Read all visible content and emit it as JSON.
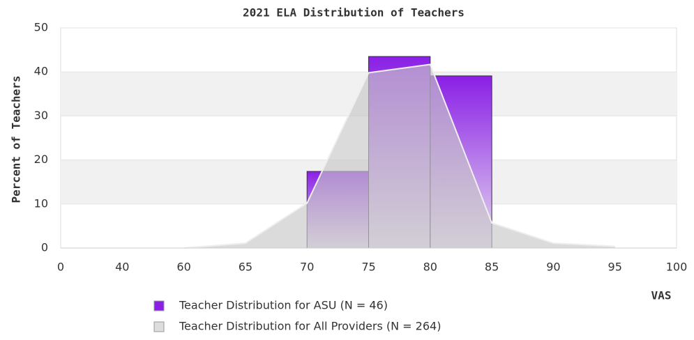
{
  "chart_data": {
    "type": "histogram",
    "title": "2021 ELA Distribution of Teachers",
    "y_label": "Percent of Teachers",
    "x_label": "VAS",
    "categories": [
      "0",
      "40",
      "60",
      "65",
      "70",
      "75",
      "80",
      "85",
      "90",
      "95",
      "100"
    ],
    "series": [
      {
        "name": "Teacher Distribution for ASU (N = 46)",
        "color": "#8a1fe6",
        "kind": "bars",
        "values": [
          null,
          null,
          null,
          null,
          17.4,
          43.5,
          39.1,
          null,
          null,
          null,
          null
        ]
      },
      {
        "name": "Teacher Distribution for All Providers (N = 264)",
        "color": "#c8c8c8",
        "kind": "area",
        "values": [
          null,
          null,
          0,
          1.1,
          10.2,
          39.8,
          41.7,
          5.7,
          1.1,
          0.4,
          null
        ]
      }
    ],
    "ylim": [
      0,
      50
    ],
    "yticks": [
      0,
      10,
      20,
      30,
      40,
      50
    ],
    "grid": true
  }
}
